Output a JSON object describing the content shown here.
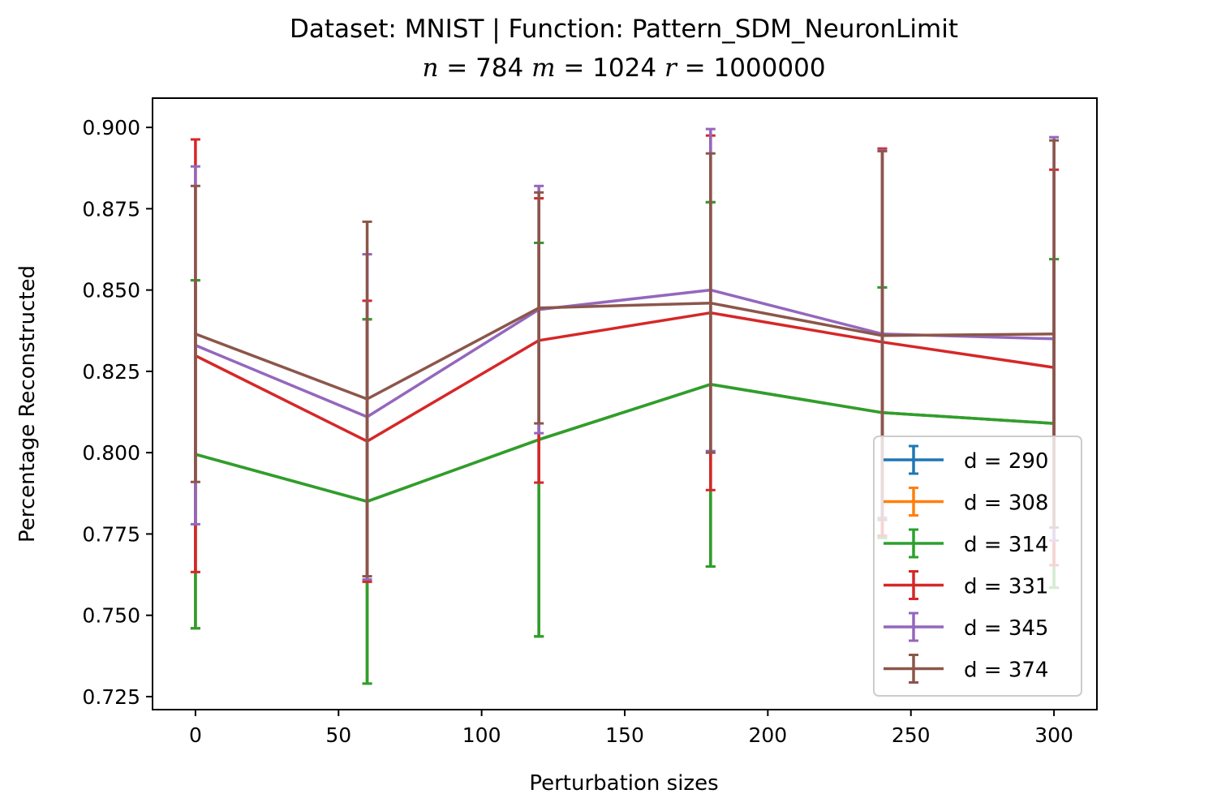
{
  "title_line1": "Dataset: MNIST | Function: Pattern_SDM_NeuronLimit",
  "title_line2": "n = 784 m = 1024 r = 1000000",
  "chart_data": {
    "type": "line",
    "title": "Dataset: MNIST | Function: Pattern_SDM_NeuronLimit",
    "subtitle": "n = 784 m = 1024 r = 1000000",
    "xlabel": "Perturbation sizes",
    "ylabel": "Percentage Reconstructed",
    "xlim": [
      -15,
      315
    ],
    "ylim": [
      0.721,
      0.909
    ],
    "x_ticks": [
      0,
      50,
      100,
      150,
      200,
      250,
      300
    ],
    "x_tick_labels": [
      "0",
      "50",
      "100",
      "150",
      "200",
      "250",
      "300"
    ],
    "y_ticks": [
      0.725,
      0.75,
      0.775,
      0.8,
      0.825,
      0.85,
      0.875,
      0.9
    ],
    "y_tick_labels": [
      "0.725",
      "0.750",
      "0.775",
      "0.800",
      "0.825",
      "0.850",
      "0.875",
      "0.900"
    ],
    "grid": false,
    "legend_position": "lower-right",
    "x": [
      0,
      60,
      120,
      180,
      240,
      300
    ],
    "error_bars": true,
    "series": [
      {
        "name": "d = 290",
        "color": "#1f77b4",
        "values": [
          0.7995,
          0.785,
          0.804,
          0.821,
          0.8123,
          0.809
        ],
        "err": [
          0.0535,
          0.056,
          0.0605,
          0.056,
          0.0385,
          0.0505
        ]
      },
      {
        "name": "d = 308",
        "color": "#ff7f0e",
        "values": [
          0.7995,
          0.785,
          0.804,
          0.821,
          0.8123,
          0.809
        ],
        "err": [
          0.0535,
          0.056,
          0.0605,
          0.056,
          0.0385,
          0.0505
        ]
      },
      {
        "name": "d = 314",
        "color": "#2ca02c",
        "values": [
          0.7995,
          0.785,
          0.804,
          0.821,
          0.8123,
          0.809
        ],
        "err": [
          0.0535,
          0.056,
          0.0605,
          0.056,
          0.0385,
          0.0505
        ]
      },
      {
        "name": "d = 331",
        "color": "#d62728",
        "values": [
          0.8298,
          0.8035,
          0.8345,
          0.843,
          0.834,
          0.8262
        ],
        "err": [
          0.0665,
          0.0432,
          0.0437,
          0.0545,
          0.0595,
          0.0608
        ]
      },
      {
        "name": "d = 345",
        "color": "#9467bd",
        "values": [
          0.833,
          0.811,
          0.844,
          0.85,
          0.8365,
          0.835
        ],
        "err": [
          0.055,
          0.05,
          0.038,
          0.0495,
          0.0565,
          0.062
        ]
      },
      {
        "name": "d = 374",
        "color": "#8c564b",
        "values": [
          0.8365,
          0.8165,
          0.8445,
          0.846,
          0.836,
          0.8365
        ],
        "err": [
          0.0455,
          0.0545,
          0.0355,
          0.046,
          0.0567,
          0.0595
        ]
      }
    ]
  }
}
